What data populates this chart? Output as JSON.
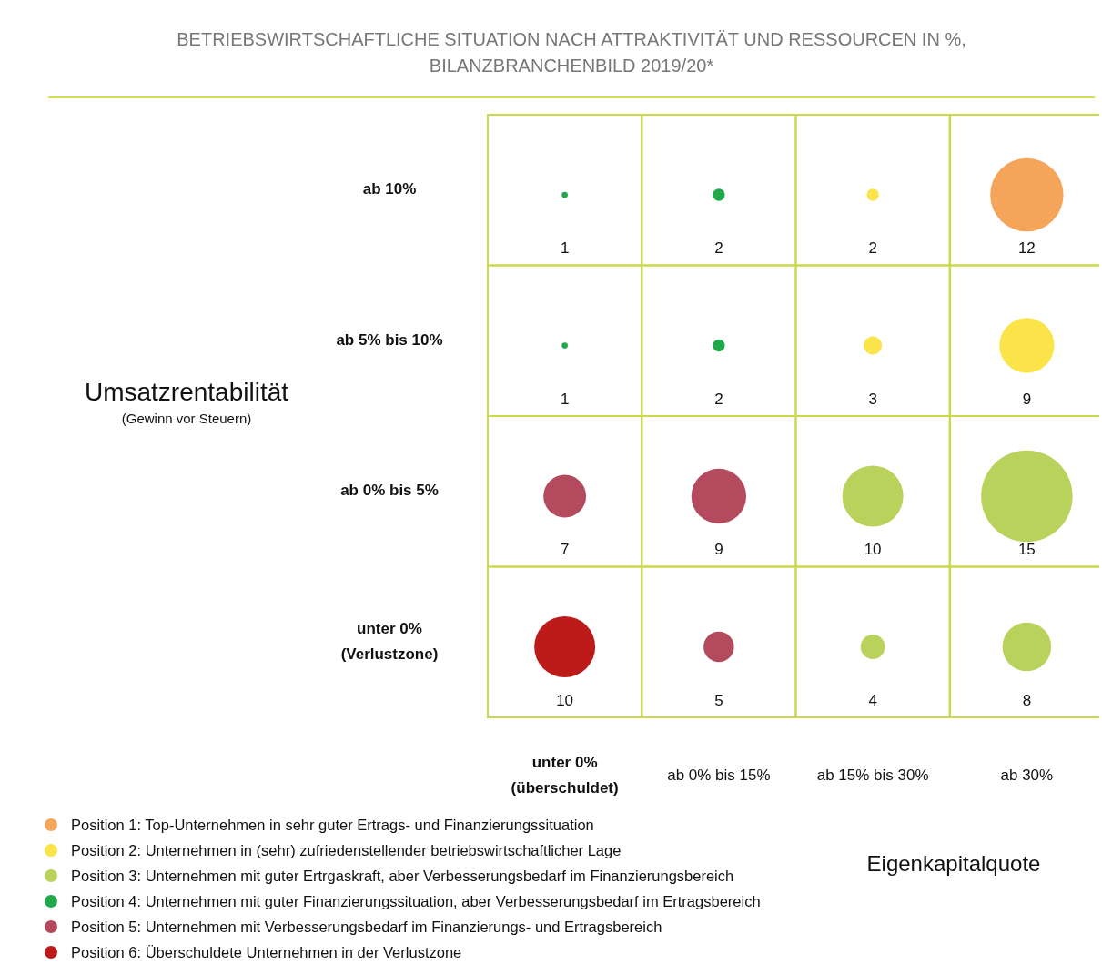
{
  "chart_data": [
    {
      "type": "heatmap",
      "title": "BETRIEBSWIRTSCHAFTLICHE SITUATION NACH ATTRAKTIVITÄT UND RESSOURCEN IN %,",
      "subtitle": "BILANZBRANCHENBILD 2019/20*",
      "xlabel": "Eigenkapitalquote",
      "ylabel": "Umsatzrentabilität",
      "annotations": [
        "(Gewinn vor Steuern)"
      ],
      "categories": [
        "unter 0%\n(überschuldet)",
        "ab 0% bis 15%",
        "ab 15% bis 30%",
        "ab 30%"
      ],
      "y_categories": [
        "ab 10%",
        "ab 5% bis 10%",
        "ab 0% bis 5%",
        "unter 0%\n(Verlustzone)"
      ],
      "cells": [
        [
          1,
          2,
          2,
          12
        ],
        [
          1,
          2,
          3,
          9
        ],
        [
          7,
          9,
          10,
          15
        ],
        [
          10,
          5,
          4,
          8
        ]
      ],
      "colors": [
        [
          "#21a84a",
          "#21a84a",
          "#fbe44a",
          "#f4a55a"
        ],
        [
          "#21a84a",
          "#21a84a",
          "#fbe44a",
          "#fbe44a"
        ],
        [
          "#b34a5e",
          "#b34a5e",
          "#b8d25c",
          "#b8d25c"
        ],
        [
          "#bd1a1a",
          "#b34a5e",
          "#b8d25c",
          "#b8d25c"
        ]
      ],
      "data_labels": true
    },
    {
      "type": "other",
      "categories": [
        "Position 1: Top-Unternehmen in sehr guter Ertrags- und Finanzierungssituation",
        "Position 2: Unternehmen in (sehr) zufriedenstellender betriebswirtschaftlicher Lage",
        "Position 3: Unternehmen mit guter Ertrgaskraft, aber Verbesserungsbedarf im Finanzierungsbereich",
        "Position 4: Unternehmen mit guter Finanzierungssituation, aber Verbesserungsbedarf im Ertragsbereich",
        "Position 5: Unternehmen mit Verbesserungsbedarf im Finanzierungs- und Ertragsbereich",
        "Position 6: Überschuldete Unternehmen in der Verlustzone"
      ],
      "colors": [
        "#f4a55a",
        "#fbe44a",
        "#b8d25c",
        "#21a84a",
        "#b34a5e",
        "#bd1a1a"
      ]
    }
  ]
}
